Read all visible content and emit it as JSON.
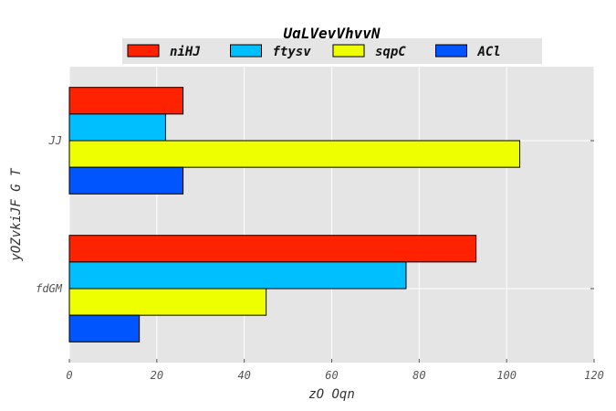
{
  "chart_data": {
    "type": "bar",
    "orientation": "horizontal",
    "title": "UqLVevVhvvN",
    "xlabel": "zO Oqn",
    "ylabel": "yOZvkiJF G T",
    "categories": [
      "fdGM",
      "JJ"
    ],
    "xlim": [
      0,
      120
    ],
    "xticks": [
      0,
      20,
      40,
      60,
      80,
      100,
      120
    ],
    "grid": true,
    "legend_position": "top-center",
    "series": [
      {
        "name": "niHJ",
        "color": "#ff2200",
        "values": [
          93,
          26
        ]
      },
      {
        "name": "ftysv",
        "color": "#00bfff",
        "values": [
          77,
          22
        ]
      },
      {
        "name": "sqpC",
        "color": "#eeff00",
        "values": [
          45,
          103
        ]
      },
      {
        "name": "ACl",
        "color": "#0055ff",
        "values": [
          16,
          26
        ]
      }
    ]
  }
}
